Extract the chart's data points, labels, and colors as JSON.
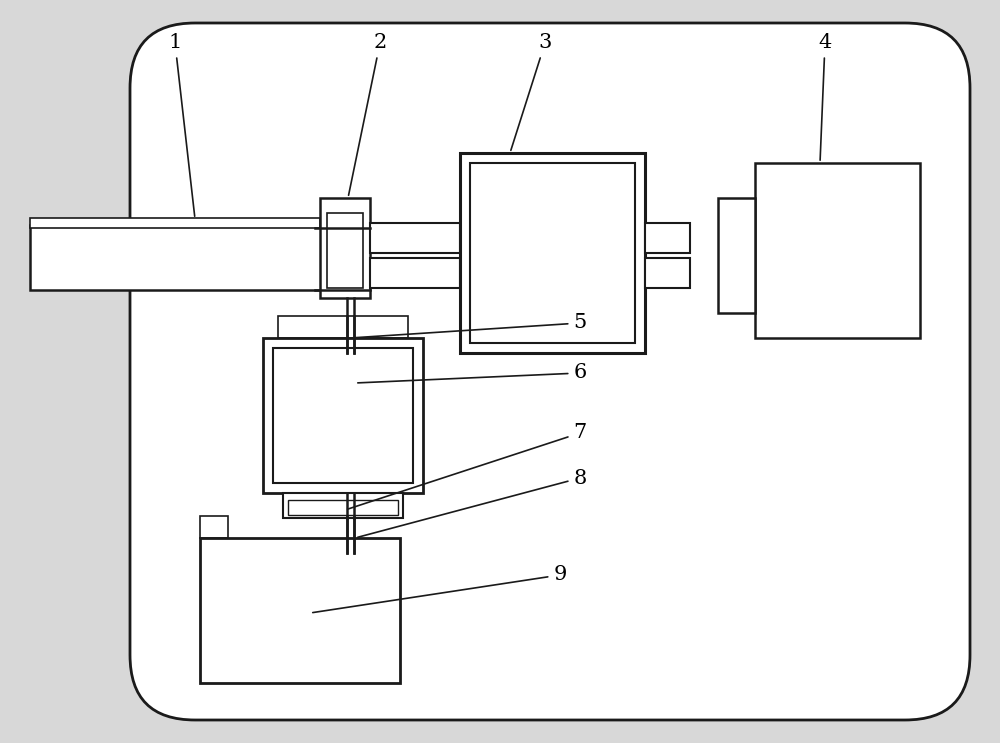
{
  "bg_color": "#d8d8d8",
  "line_color": "#1a1a1a",
  "white": "#ffffff",
  "label_fontsize": 15,
  "labels": [
    "1",
    "2",
    "3",
    "4",
    "5",
    "6",
    "7",
    "8",
    "9"
  ]
}
